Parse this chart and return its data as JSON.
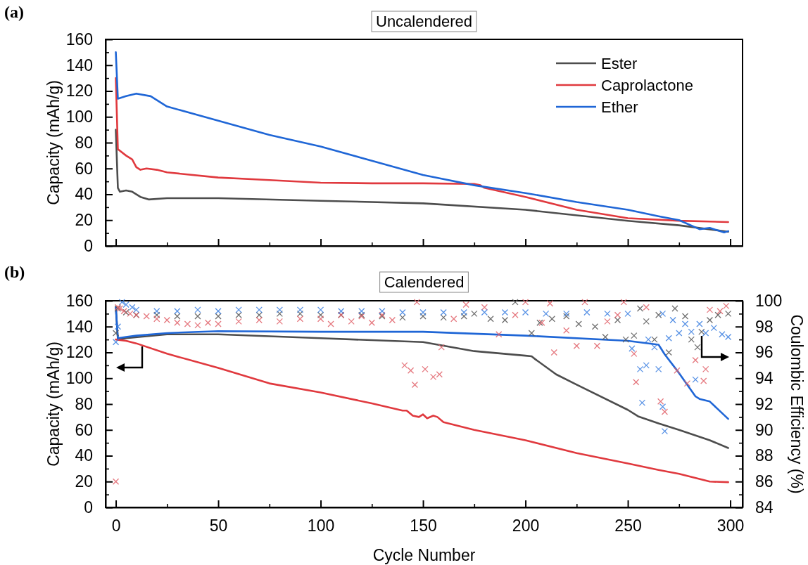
{
  "chart_data": [
    {
      "type": "line",
      "title": "Uncalendered",
      "annotations": [
        "(a)"
      ],
      "ylabel": "Capacity (mAh/g)",
      "xlim": [
        -5,
        306
      ],
      "xticks": [
        0,
        {
          "value": 25,
          "label": null
        },
        50,
        {
          "value": 75,
          "label": null
        },
        100,
        {
          "value": 125,
          "label": null
        },
        150,
        {
          "value": 175,
          "label": null
        },
        200,
        {
          "value": 225,
          "label": null
        },
        250,
        {
          "value": 275,
          "label": null
        },
        300
      ],
      "ylim": [
        0,
        160
      ],
      "yticks": [
        0,
        {
          "value": 10,
          "label": null
        },
        20,
        {
          "value": 30,
          "label": null
        },
        40,
        {
          "value": 50,
          "label": null
        },
        60,
        {
          "value": 70,
          "label": null
        },
        80,
        {
          "value": 90,
          "label": null
        },
        100,
        {
          "value": 110,
          "label": null
        },
        120,
        {
          "value": 130,
          "label": null
        },
        140,
        {
          "value": 150,
          "label": null
        },
        160
      ],
      "tick_labels": "y",
      "legend": "top right",
      "series": [
        {
          "name": "Ester",
          "color": "#4d4d4d",
          "x": [
            0,
            1,
            2,
            5,
            8,
            12,
            16,
            25,
            50,
            100,
            150,
            200,
            250,
            275,
            299
          ],
          "values": [
            90,
            45,
            42,
            43,
            42,
            38,
            36,
            37,
            37,
            35,
            33,
            28,
            19.5,
            16,
            11
          ]
        },
        {
          "name": "Caprolactone",
          "color": "#e0393e",
          "x": [
            0,
            1,
            5,
            8,
            10,
            12,
            15,
            20,
            25,
            50,
            75,
            100,
            125,
            150,
            175,
            178,
            180,
            200,
            225,
            250,
            275,
            299
          ],
          "values": [
            130,
            75,
            70,
            67,
            61,
            59,
            60,
            59,
            57,
            53,
            51,
            49,
            48.5,
            48.5,
            48,
            47,
            45,
            38,
            28,
            21.5,
            19.5,
            18.5
          ]
        },
        {
          "name": "Ether",
          "color": "#1f66d6",
          "x": [
            0,
            1,
            5,
            10,
            17,
            25,
            50,
            75,
            100,
            125,
            150,
            175,
            200,
            225,
            250,
            265,
            275,
            285,
            290,
            297,
            299
          ],
          "values": [
            150,
            114,
            116,
            118,
            116,
            108,
            97,
            86,
            77,
            66,
            55,
            47,
            41,
            34,
            28,
            23,
            20,
            13,
            14,
            10.5,
            11.5
          ]
        }
      ]
    },
    {
      "type": "line",
      "title": "Calendered",
      "annotations": [
        "(b)"
      ],
      "xlabel": "Cycle Number",
      "ylabel": "Capacity (mAh/g)",
      "y2label": "Coulombic Efficiency (%)",
      "xlim": [
        -5,
        306
      ],
      "xticks": [
        0,
        {
          "value": 25,
          "label": null
        },
        50,
        {
          "value": 75,
          "label": null
        },
        100,
        {
          "value": 125,
          "label": null
        },
        150,
        {
          "value": 175,
          "label": null
        },
        200,
        {
          "value": 225,
          "label": null
        },
        250,
        {
          "value": 275,
          "label": null
        },
        300
      ],
      "ylim": [
        0,
        160
      ],
      "yticks": [
        0,
        {
          "value": 10,
          "label": null
        },
        20,
        {
          "value": 30,
          "label": null
        },
        40,
        {
          "value": 50,
          "label": null
        },
        60,
        {
          "value": 70,
          "label": null
        },
        80,
        {
          "value": 90,
          "label": null
        },
        100,
        {
          "value": 110,
          "label": null
        },
        120,
        {
          "value": 130,
          "label": null
        },
        140,
        {
          "value": 150,
          "label": null
        },
        160
      ],
      "y2lim": [
        84,
        100
      ],
      "y2ticks": [
        84,
        {
          "value": 85,
          "label": null
        },
        86,
        {
          "value": 87,
          "label": null
        },
        88,
        {
          "value": 89,
          "label": null
        },
        90,
        {
          "value": 91,
          "label": null
        },
        92,
        {
          "value": 93,
          "label": null
        },
        94,
        {
          "value": 95,
          "label": null
        },
        96,
        {
          "value": 97,
          "label": null
        },
        98,
        {
          "value": 99,
          "label": null
        },
        100
      ],
      "series": [
        {
          "color": "#4d4d4d",
          "x": [
            0,
            1,
            5,
            25,
            50,
            100,
            150,
            175,
            200,
            203,
            205,
            215,
            225,
            250,
            255,
            265,
            275,
            290,
            299
          ],
          "values": [
            155,
            130,
            131,
            134,
            134,
            131,
            128,
            121,
            117.5,
            117,
            114.5,
            103,
            95,
            75.5,
            70.5,
            65,
            60,
            52,
            46
          ]
        },
        {
          "color": "#e0393e",
          "x": [
            0,
            5,
            10,
            25,
            50,
            75,
            100,
            125,
            140,
            142,
            145,
            148,
            150,
            152,
            155,
            157,
            160,
            175,
            200,
            225,
            250,
            265,
            275,
            290,
            299
          ],
          "values": [
            130,
            129,
            127,
            119,
            108,
            96,
            89,
            80.5,
            75,
            75,
            71,
            70,
            72,
            69,
            71,
            70,
            66,
            60,
            52,
            42,
            34,
            29,
            26,
            20,
            19.5
          ]
        },
        {
          "color": "#1f66d6",
          "x": [
            0,
            1,
            5,
            10,
            25,
            50,
            100,
            150,
            200,
            250,
            265,
            268,
            275,
            283,
            285,
            290,
            299
          ],
          "values": [
            155,
            131,
            132,
            133,
            135,
            136.5,
            136,
            136,
            133,
            129,
            126,
            118.5,
            104,
            86,
            84,
            82,
            68.5
          ]
        },
        {
          "type": "scatter",
          "axis": "y2",
          "marker": "cross",
          "color": "#555555",
          "x": [
            0,
            1,
            5,
            10,
            20,
            30,
            40,
            50,
            60,
            70,
            80,
            90,
            100,
            110,
            120,
            130,
            140,
            150,
            160,
            170,
            175,
            183,
            190,
            195,
            203,
            207,
            213,
            220,
            226,
            234,
            239,
            245,
            249,
            253,
            256,
            259,
            263,
            265,
            270,
            273,
            278,
            281,
            284,
            286,
            290,
            294,
            299
          ],
          "values": [
            97.5,
            99.4,
            99.1,
            98.9,
            98.9,
            98.8,
            98.8,
            98.8,
            98.9,
            98.9,
            99.0,
            99.0,
            98.9,
            98.9,
            98.9,
            98.8,
            98.7,
            98.8,
            98.7,
            98.8,
            99.0,
            98.6,
            98.5,
            99.9,
            97.5,
            98.3,
            98.6,
            98.8,
            98.2,
            98.0,
            97.2,
            98.5,
            97.0,
            97.3,
            99.4,
            98.4,
            97.0,
            98.9,
            96.0,
            99.4,
            98.8,
            97.0,
            96.4,
            97.6,
            98.5,
            98.9,
            99.0
          ]
        },
        {
          "type": "scatter",
          "axis": "y2",
          "marker": "cross",
          "color": "#e06068",
          "x": [
            0,
            1,
            2,
            4,
            7,
            10,
            15,
            20,
            25,
            30,
            35,
            40,
            45,
            50,
            60,
            70,
            80,
            90,
            100,
            105,
            110,
            115,
            120,
            125,
            130,
            135,
            141,
            144,
            146,
            147,
            151,
            155,
            158,
            159,
            165,
            171,
            180,
            187,
            195,
            200,
            208,
            212,
            214,
            220,
            225,
            229,
            235,
            240,
            245,
            248,
            253,
            254,
            259,
            266,
            268,
            274,
            279,
            283,
            287,
            288,
            290,
            295,
            298
          ],
          "values": [
            86.0,
            99.5,
            99.4,
            99.2,
            99.0,
            98.9,
            98.8,
            98.6,
            98.5,
            98.3,
            98.2,
            98.1,
            98.3,
            98.2,
            98.4,
            98.5,
            98.4,
            98.6,
            98.6,
            98.2,
            98.9,
            98.4,
            98.8,
            98.3,
            98.9,
            98.5,
            95.0,
            94.6,
            93.5,
            99.9,
            94.7,
            94.1,
            94.3,
            96.4,
            98.6,
            99.7,
            99.5,
            97.4,
            98.9,
            99.9,
            98.3,
            99.8,
            96.0,
            97.7,
            96.5,
            99.9,
            96.5,
            98.4,
            98.9,
            99.9,
            95.9,
            93.7,
            99.5,
            92.2,
            91.4,
            94.6,
            93.6,
            95.4,
            93.8,
            94.7,
            99.3,
            99.2,
            99.6
          ]
        },
        {
          "type": "scatter",
          "axis": "y2",
          "marker": "cross",
          "color": "#3a7ee0",
          "x": [
            0,
            1,
            3,
            5,
            8,
            10,
            20,
            30,
            40,
            50,
            60,
            70,
            80,
            90,
            100,
            110,
            120,
            130,
            140,
            150,
            160,
            170,
            180,
            190,
            200,
            210,
            220,
            230,
            240,
            250,
            252,
            256,
            257,
            259,
            260,
            263,
            265,
            267,
            267,
            268,
            270,
            272,
            275,
            278,
            281,
            283,
            285,
            288,
            292,
            296,
            299
          ],
          "values": [
            96.8,
            98.0,
            99.9,
            99.7,
            99.5,
            99.3,
            99.2,
            99.2,
            99.3,
            99.2,
            99.3,
            99.3,
            99.3,
            99.3,
            99.3,
            99.2,
            99.2,
            99.2,
            99.1,
            99.1,
            99.1,
            99.1,
            99.1,
            99.1,
            99.1,
            99.0,
            99.0,
            99.1,
            99.0,
            99.0,
            96.3,
            94.7,
            92.1,
            95.0,
            97.0,
            96.4,
            94.7,
            99.0,
            91.8,
            89.9,
            97.1,
            98.5,
            97.5,
            98.2,
            97.6,
            93.9,
            98.2,
            97.5,
            97.9,
            97.4,
            97.2
          ]
        }
      ]
    }
  ]
}
